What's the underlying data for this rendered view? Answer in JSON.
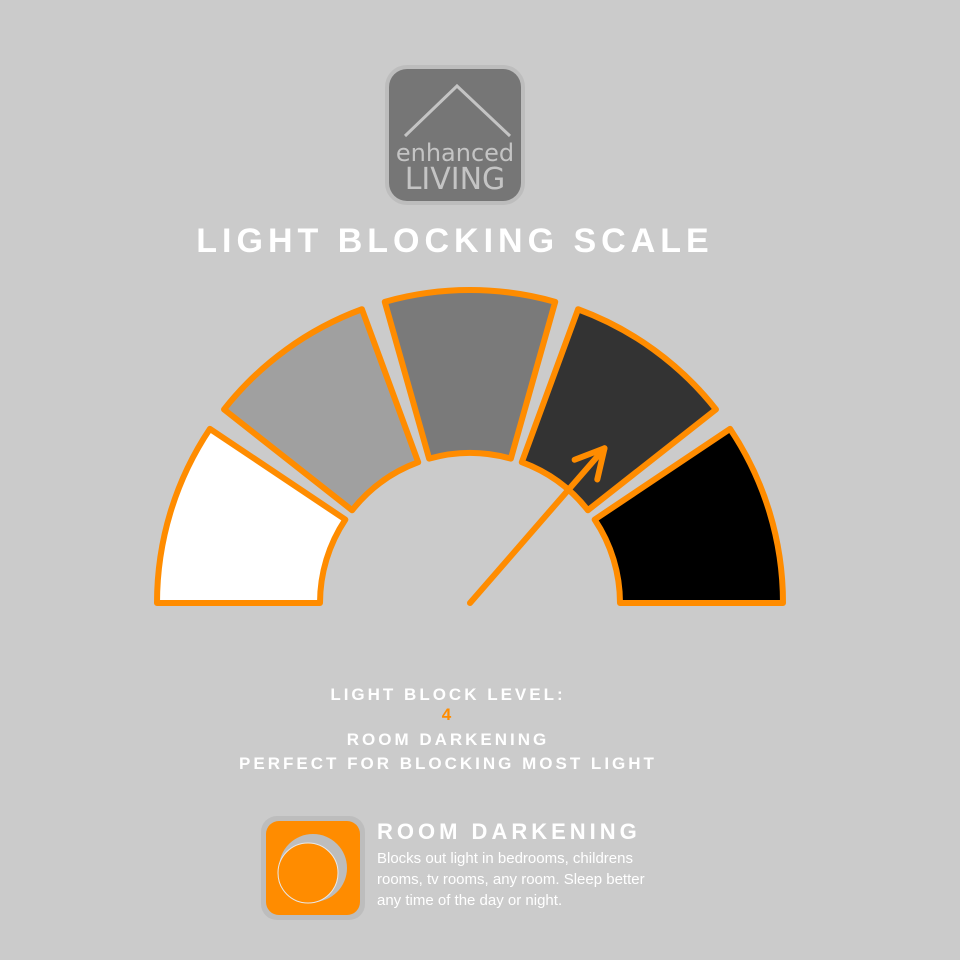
{
  "logo": {
    "line1": "enhanced",
    "line2": "LIVING"
  },
  "title": "LIGHT BLOCKING SCALE",
  "gauge": {
    "segments": 5,
    "segment_colors": [
      "#ffffff",
      "#a0a0a0",
      "#7a7a7a",
      "#333333",
      "#000000"
    ],
    "outline_color": "#ff8c00",
    "level": 4
  },
  "info": {
    "label": "LIGHT BLOCK LEVEL:",
    "level": "4",
    "name": "ROOM DARKENING",
    "tagline": "PERFECT FOR BLOCKING MOST LIGHT"
  },
  "feature": {
    "icon": "moon-icon",
    "title": "ROOM DARKENING",
    "description": "Blocks out light in bedrooms, childrens rooms, tv rooms, any room. Sleep better any time of the day or night."
  }
}
